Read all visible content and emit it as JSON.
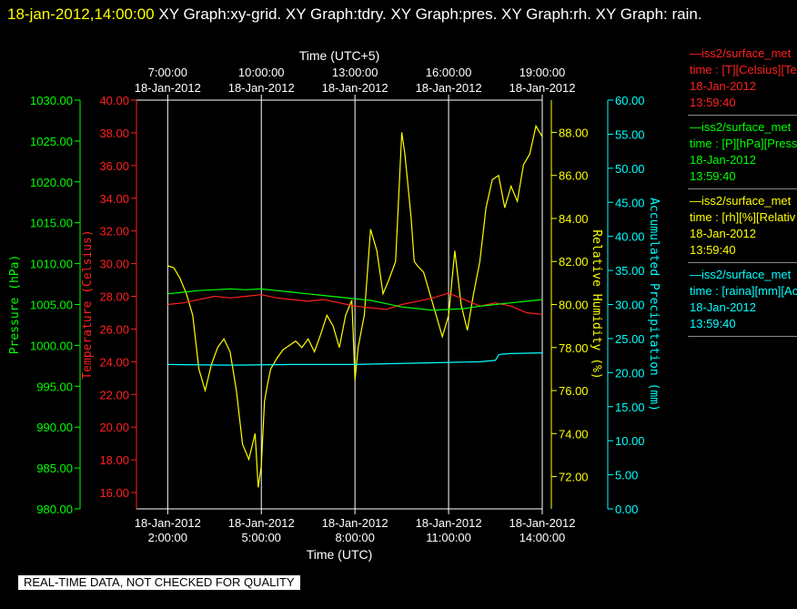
{
  "header": {
    "timestamp": "18-jan-2012,14:00:00",
    "rest": "  XY Graph:xy-grid.  XY Graph:tdry.  XY Graph:pres.  XY Graph:rh.  XY Graph: rain."
  },
  "footer_note": "REAL-TIME DATA, NOT CHECKED FOR QUALITY",
  "legend": [
    {
      "line1": "—iss2/surface_met",
      "line2": "time : [T][Celsius][Te",
      "line3": "18-Jan-2012",
      "line4": "13:59:40",
      "color": "#ff2020"
    },
    {
      "line1": "—iss2/surface_met",
      "line2": "time : [P][hPa][Press",
      "line3": "18-Jan-2012",
      "line4": "13:59:40",
      "color": "#00ff00"
    },
    {
      "line1": "—iss2/surface_met",
      "line2": "time : [rh][%][Relativ",
      "line3": "18-Jan-2012",
      "line4": "13:59:40",
      "color": "#ffff00"
    },
    {
      "line1": "—iss2/surface_met",
      "line2": "time : [raina][mm][Ac",
      "line3": "18-Jan-2012",
      "line4": "13:59:40",
      "color": "#00ffff"
    }
  ],
  "chart_data": {
    "type": "line",
    "x_unit": "hours UTC",
    "xlim": [
      1.0,
      14.0
    ],
    "x_bottom_title": "Time (UTC)",
    "x_top_title": "Time (UTC+5)",
    "x_bottom_ticks": [
      {
        "x": 2,
        "date": "18-Jan-2012",
        "time": "2:00:00"
      },
      {
        "x": 5,
        "date": "18-Jan-2012",
        "time": "5:00:00"
      },
      {
        "x": 8,
        "date": "18-Jan-2012",
        "time": "8:00:00"
      },
      {
        "x": 11,
        "date": "18-Jan-2012",
        "time": "11:00:00"
      },
      {
        "x": 14,
        "date": "18-Jan-2012",
        "time": "14:00:00"
      }
    ],
    "x_top_ticks": [
      {
        "x": 2,
        "time": "7:00:00",
        "date": "18-Jan-2012"
      },
      {
        "x": 5,
        "time": "10:00:00",
        "date": "18-Jan-2012"
      },
      {
        "x": 8,
        "time": "13:00:00",
        "date": "18-Jan-2012"
      },
      {
        "x": 11,
        "time": "16:00:00",
        "date": "18-Jan-2012"
      },
      {
        "x": 14,
        "time": "19:00:00",
        "date": "18-Jan-2012"
      }
    ],
    "grid": true,
    "axes": [
      {
        "id": "pres",
        "label": "Pressure (hPa)",
        "color": "#00ff00",
        "ylim": [
          980,
          1030
        ],
        "ticks": [
          "980.00",
          "985.00",
          "990.00",
          "995.00",
          "1000.00",
          "1005.00",
          "1010.00",
          "1015.00",
          "1020.00",
          "1025.00",
          "1030.00"
        ],
        "tick_values": [
          980,
          985,
          990,
          995,
          1000,
          1005,
          1010,
          1015,
          1020,
          1025,
          1030
        ]
      },
      {
        "id": "tdry",
        "label": "Temperature (Celsius)",
        "color": "#ff2020",
        "ylim": [
          15.0,
          40.0
        ],
        "ticks": [
          "16.00",
          "18.00",
          "20.00",
          "22.00",
          "24.00",
          "26.00",
          "28.00",
          "30.00",
          "32.00",
          "34.00",
          "36.00",
          "38.00",
          "40.00"
        ],
        "tick_values": [
          16,
          18,
          20,
          22,
          24,
          26,
          28,
          30,
          32,
          34,
          36,
          38,
          40
        ]
      },
      {
        "id": "rh",
        "label": "Relative Humidity (%)",
        "color": "#ffff00",
        "ylim": [
          70.5,
          89.5
        ],
        "ticks": [
          "72.00",
          "74.00",
          "76.00",
          "78.00",
          "80.00",
          "82.00",
          "84.00",
          "86.00",
          "88.00"
        ],
        "tick_values": [
          72,
          74,
          76,
          78,
          80,
          82,
          84,
          86,
          88
        ]
      },
      {
        "id": "rain",
        "label": "Accumulated Precipitation (mm)",
        "color": "#00ffff",
        "ylim": [
          0,
          60
        ],
        "ticks": [
          "0.00",
          "5.00",
          "10.00",
          "15.00",
          "20.00",
          "25.00",
          "30.00",
          "35.00",
          "40.00",
          "45.00",
          "50.00",
          "55.00",
          "60.00"
        ],
        "tick_values": [
          0,
          5,
          10,
          15,
          20,
          25,
          30,
          35,
          40,
          45,
          50,
          55,
          60
        ]
      }
    ],
    "series": [
      {
        "axis": "rh",
        "color": "#ffff00",
        "x": [
          2.0,
          2.2,
          2.4,
          2.6,
          2.8,
          3.0,
          3.2,
          3.4,
          3.6,
          3.8,
          4.0,
          4.2,
          4.4,
          4.6,
          4.8,
          4.9,
          5.0,
          5.1,
          5.2,
          5.3,
          5.5,
          5.7,
          5.9,
          6.1,
          6.3,
          6.5,
          6.7,
          6.9,
          7.1,
          7.3,
          7.5,
          7.7,
          7.9,
          8.0,
          8.1,
          8.3,
          8.5,
          8.7,
          8.9,
          9.1,
          9.3,
          9.5,
          9.6,
          9.7,
          9.8,
          9.9,
          10.0,
          10.2,
          10.4,
          10.6,
          10.8,
          11.0,
          11.2,
          11.4,
          11.6,
          11.8,
          12.0,
          12.2,
          12.4,
          12.6,
          12.8,
          13.0,
          13.2,
          13.4,
          13.6,
          13.8,
          14.0
        ],
        "y": [
          81.8,
          81.7,
          81.2,
          80.5,
          79.5,
          77.0,
          76.0,
          77.2,
          78.0,
          78.4,
          77.8,
          76.0,
          73.5,
          72.8,
          74.0,
          71.5,
          72.5,
          75.5,
          76.3,
          77.0,
          77.5,
          77.9,
          78.1,
          78.3,
          78.0,
          78.4,
          77.8,
          78.6,
          79.5,
          79.0,
          78.0,
          79.5,
          80.2,
          76.5,
          78.0,
          79.5,
          83.5,
          82.5,
          80.5,
          81.2,
          82.0,
          88.0,
          87.0,
          85.5,
          84.0,
          82.0,
          81.8,
          81.5,
          80.5,
          79.5,
          78.5,
          79.5,
          82.5,
          80.0,
          78.8,
          80.5,
          82.0,
          84.5,
          85.8,
          86.0,
          84.5,
          85.5,
          84.8,
          86.5,
          87.0,
          88.3,
          87.8
        ]
      },
      {
        "axis": "tdry",
        "color": "#ff2020",
        "x": [
          2.0,
          2.5,
          3.0,
          3.5,
          4.0,
          4.5,
          5.0,
          5.5,
          6.0,
          6.5,
          7.0,
          7.5,
          8.0,
          8.5,
          9.0,
          9.5,
          10.0,
          10.5,
          11.0,
          11.5,
          12.0,
          12.5,
          13.0,
          13.5,
          14.0
        ],
        "y": [
          27.5,
          27.6,
          27.8,
          28.0,
          27.9,
          28.0,
          28.1,
          27.9,
          27.8,
          27.7,
          27.8,
          27.6,
          27.4,
          27.3,
          27.2,
          27.5,
          27.7,
          27.9,
          28.2,
          27.8,
          27.4,
          27.6,
          27.4,
          27.0,
          26.9
        ]
      },
      {
        "axis": "pres",
        "color": "#00ff00",
        "x": [
          2.0,
          2.5,
          3.0,
          3.5,
          4.0,
          4.5,
          5.0,
          5.5,
          6.0,
          6.5,
          7.0,
          7.5,
          8.0,
          8.5,
          9.0,
          9.5,
          10.0,
          10.5,
          11.0,
          11.5,
          12.0,
          12.5,
          13.0,
          13.5,
          14.0
        ],
        "y": [
          1006.3,
          1006.5,
          1006.7,
          1006.8,
          1006.9,
          1006.8,
          1006.9,
          1006.7,
          1006.5,
          1006.3,
          1006.1,
          1005.9,
          1005.7,
          1005.5,
          1005.1,
          1004.7,
          1004.5,
          1004.3,
          1004.4,
          1004.5,
          1004.8,
          1005.0,
          1005.2,
          1005.4,
          1005.6
        ]
      },
      {
        "axis": "rain",
        "color": "#00ffff",
        "x": [
          2.0,
          4.0,
          6.0,
          8.0,
          10.0,
          11.0,
          12.0,
          12.5,
          12.6,
          12.7,
          13.0,
          14.0
        ],
        "y": [
          21.2,
          21.1,
          21.2,
          21.2,
          21.4,
          21.5,
          21.6,
          21.8,
          22.6,
          22.7,
          22.8,
          22.9
        ]
      }
    ]
  }
}
